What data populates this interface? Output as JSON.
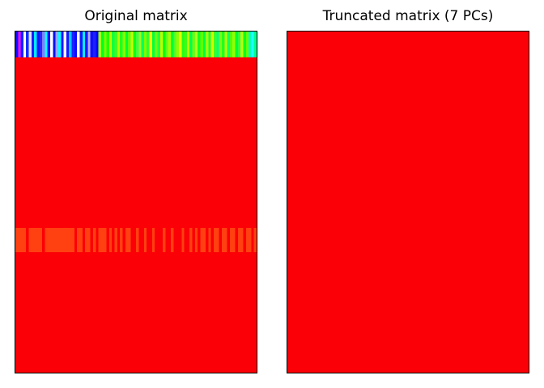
{
  "chart_data": [
    {
      "type": "heatmap",
      "title": "Original matrix",
      "xlabel": "",
      "ylabel": "",
      "grid": false,
      "background_color": "#fb0006",
      "rows": [
        {
          "label": "",
          "colors": [
            "#1010ff",
            "#ff10ff",
            "#0c24ff",
            "#fffffe",
            "#1030ff",
            "#e0e0ff",
            "#1818ff",
            "#00e8ff",
            "#1010ff",
            "#2828ff",
            "#8080ff",
            "#00ffff",
            "#1010ff",
            "#ffffff",
            "#0010ff",
            "#a0a0ff",
            "#00ffff",
            "#1010ff",
            "#fff0ff",
            "#1818ff",
            "#00c8ff",
            "#2020ff",
            "#0c0cff",
            "#fff8ff",
            "#1818ff",
            "#00f0ff",
            "#1010ff",
            "#b0b0ff",
            "#1010ff",
            "#2020ff",
            "#0008ff",
            "#a0ff10",
            "#00ff20",
            "#80ff00",
            "#20ff00",
            "#c0ff00",
            "#10ff40",
            "#40ff20",
            "#b8ff00",
            "#20ff20",
            "#88ff00",
            "#00ff30",
            "#60ff10",
            "#d0ff00",
            "#10ff10",
            "#40ff40",
            "#a0ff20",
            "#00ff60",
            "#80ff00",
            "#30ff30",
            "#ffff00",
            "#00ff40",
            "#70ff10",
            "#20ff40",
            "#c8ff00",
            "#08ff08",
            "#60ff20",
            "#a8ff00",
            "#00ff30",
            "#50ff30",
            "#90ff00",
            "#e8ff00",
            "#20ff20",
            "#40ff10",
            "#c0ff00",
            "#00ff50",
            "#70ff10",
            "#b0ff20",
            "#10ff20",
            "#60ff00",
            "#00ff40",
            "#a0ff10",
            "#20ff30",
            "#d8ff00",
            "#40ff20",
            "#00ff80",
            "#80ff10",
            "#20ff20",
            "#c0ff00",
            "#10ff60",
            "#50ff10",
            "#98ff00",
            "#00ff30",
            "#30ff40",
            "#b8ff10",
            "#08ff20",
            "#68ff00",
            "#00ffc0",
            "#20ffff",
            "#00ff90"
          ]
        },
        {
          "label": "",
          "colors": [
            "#fb0006"
          ]
        },
        {
          "label": "",
          "colors": [
            "#ff4010",
            "#ff4010",
            "#ff4010",
            "#ff4010",
            "#fb0006",
            "#ff4010",
            "#ff4010",
            "#ff4010",
            "#ff4010",
            "#ff4010",
            "#fb0006",
            "#ff4010",
            "#ff4010",
            "#ff4010",
            "#ff4010",
            "#ff4010",
            "#ff4010",
            "#ff4010",
            "#ff4010",
            "#ff4010",
            "#ff4010",
            "#ff4010",
            "#fb0006",
            "#ff4010",
            "#ff4010",
            "#fb0006",
            "#ff4010",
            "#ff4010",
            "#fb0006",
            "#ff4010",
            "#fb0006",
            "#ff4010",
            "#ff4010",
            "#ff4010",
            "#fb0006",
            "#ff4010",
            "#fb0006",
            "#ff4010",
            "#fb0006",
            "#ff4010",
            "#fb0006",
            "#ff4010",
            "#ff4010",
            "#fb0006",
            "#fb0006",
            "#ff4010",
            "#fb0006",
            "#fb0006",
            "#ff4010",
            "#fb0006",
            "#fb0006",
            "#ff4010",
            "#fb0006",
            "#fb0006",
            "#fb0006",
            "#ff4010",
            "#fb0006",
            "#fb0006",
            "#ff4010",
            "#fb0006",
            "#fb0006",
            "#fb0006",
            "#ff4010",
            "#fb0006",
            "#fb0006",
            "#ff4010",
            "#fb0006",
            "#ff4010",
            "#fb0006",
            "#ff4010",
            "#ff4010",
            "#fb0006",
            "#ff4010",
            "#fb0006",
            "#ff4010",
            "#ff4010",
            "#fb0006",
            "#ff4010",
            "#ff4010",
            "#fb0006",
            "#ff4010",
            "#ff4010",
            "#fb0006",
            "#ff4010",
            "#ff4010",
            "#fb0006",
            "#ff4010",
            "#ff4010",
            "#fb0006",
            "#ff4010"
          ]
        },
        {
          "label": "",
          "colors": [
            "#fb0006"
          ]
        }
      ]
    },
    {
      "type": "heatmap",
      "title": "Truncated matrix (7 PCs)",
      "xlabel": "",
      "ylabel": "",
      "grid": false,
      "background_color": "#fb0006",
      "rows": [
        {
          "label": "",
          "colors": [
            "#fb0006"
          ]
        }
      ]
    }
  ]
}
